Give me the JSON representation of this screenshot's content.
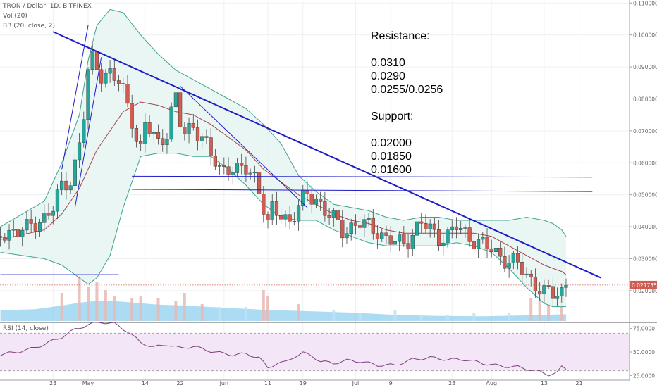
{
  "header": {
    "symbol_line": "TRON / Dollar, 1D, BITFINEX",
    "volume_line": "Vol (20)",
    "bb_line": "BB (20, close, 2)",
    "rsi_line": "RSI (14, close)"
  },
  "annotation": {
    "resistance_title": "Resistance:",
    "resistance_levels": [
      "0.0310",
      "0.0290",
      "0.0255/0.0256"
    ],
    "support_title": "Support:",
    "support_levels": [
      "0.02000",
      "0.01850",
      "0.01600"
    ]
  },
  "price_axis": {
    "ticks": [
      "0.110000",
      "0.100000",
      "0.090000",
      "0.080000",
      "0.070000",
      "0.060000",
      "0.050000",
      "0.040000",
      "0.030000",
      "0.020000"
    ],
    "tick_values": [
      0.11,
      0.1,
      0.09,
      0.08,
      0.07,
      0.06,
      0.05,
      0.04,
      0.03,
      0.02
    ],
    "last_price_label": "0.021755",
    "last_price": 0.021755
  },
  "rsi_axis": {
    "ticks": [
      "75.0000",
      "50.0000",
      "25.0000"
    ],
    "tick_values": [
      75,
      50,
      25
    ],
    "overbought": 70,
    "oversold": 30
  },
  "x_axis": {
    "labels": [
      "23",
      "May",
      "14",
      "22",
      "Jun",
      "11",
      "19",
      "Jul",
      "9",
      "23",
      "Aug",
      "13",
      "21"
    ],
    "label_days": [
      -8,
      0,
      13,
      21,
      31,
      41,
      49,
      61,
      69,
      83,
      92,
      104,
      112
    ]
  },
  "colors": {
    "up": "#26a69a",
    "down": "#d05c52",
    "bb_band": "#3fa38f",
    "bb_fill": "#e6f4f1",
    "bb_basis": "#a3424e",
    "trendline": "#1c1cc8",
    "volume": "#8fd0f0",
    "rsi_line": "#7f3f7f",
    "rsi_band": "#f2e6f7",
    "last_price_line": "#d05c52"
  },
  "chart_data": {
    "type": "candlestick",
    "title": "TRON / Dollar, 1D, BITFINEX",
    "x_unit": "days relative to May 1",
    "y_range": [
      0.0105,
      0.1105
    ],
    "rsi_range": [
      20,
      80
    ],
    "close_points": [
      [
        -20,
        0.037
      ],
      [
        -17,
        0.039
      ],
      [
        -14,
        0.039
      ],
      [
        -11,
        0.042
      ],
      [
        -8,
        0.046
      ],
      [
        -6,
        0.052
      ],
      [
        -4,
        0.055
      ],
      [
        -3,
        0.06
      ],
      [
        -2,
        0.066
      ],
      [
        -1,
        0.075
      ],
      [
        0,
        0.088
      ],
      [
        1,
        0.092
      ],
      [
        3,
        0.088
      ],
      [
        5,
        0.088
      ],
      [
        7,
        0.085
      ],
      [
        8,
        0.082
      ],
      [
        9,
        0.078
      ],
      [
        10,
        0.074
      ],
      [
        11,
        0.068
      ],
      [
        12,
        0.064
      ],
      [
        13,
        0.072
      ],
      [
        14,
        0.07
      ],
      [
        16,
        0.066
      ],
      [
        18,
        0.07
      ],
      [
        19,
        0.076
      ],
      [
        20,
        0.08
      ],
      [
        21,
        0.072
      ],
      [
        22,
        0.069
      ],
      [
        24,
        0.072
      ],
      [
        26,
        0.068
      ],
      [
        28,
        0.062
      ],
      [
        30,
        0.058
      ],
      [
        32,
        0.059
      ],
      [
        34,
        0.057
      ],
      [
        36,
        0.058
      ],
      [
        38,
        0.056
      ],
      [
        39,
        0.052
      ],
      [
        40,
        0.046
      ],
      [
        41,
        0.04
      ],
      [
        42,
        0.045
      ],
      [
        44,
        0.044
      ],
      [
        46,
        0.042
      ],
      [
        48,
        0.046
      ],
      [
        50,
        0.05
      ],
      [
        52,
        0.049
      ],
      [
        54,
        0.045
      ],
      [
        56,
        0.042
      ],
      [
        58,
        0.039
      ],
      [
        60,
        0.04
      ],
      [
        62,
        0.041
      ],
      [
        64,
        0.04
      ],
      [
        66,
        0.039
      ],
      [
        68,
        0.036
      ],
      [
        70,
        0.035
      ],
      [
        72,
        0.035
      ],
      [
        74,
        0.038
      ],
      [
        76,
        0.041
      ],
      [
        78,
        0.039
      ],
      [
        80,
        0.037
      ],
      [
        82,
        0.037
      ],
      [
        84,
        0.04
      ],
      [
        86,
        0.038
      ],
      [
        88,
        0.036
      ],
      [
        90,
        0.034
      ],
      [
        92,
        0.033
      ],
      [
        94,
        0.031
      ],
      [
        96,
        0.029
      ],
      [
        98,
        0.028
      ],
      [
        100,
        0.025
      ],
      [
        102,
        0.022
      ],
      [
        104,
        0.019
      ],
      [
        106,
        0.019
      ],
      [
        108,
        0.02
      ],
      [
        109,
        0.0217
      ]
    ],
    "bb_upper": [
      [
        -20,
        0.04
      ],
      [
        -10,
        0.048
      ],
      [
        -6,
        0.06
      ],
      [
        -2,
        0.075
      ],
      [
        0,
        0.092
      ],
      [
        2,
        0.103
      ],
      [
        5,
        0.108
      ],
      [
        8,
        0.107
      ],
      [
        12,
        0.1
      ],
      [
        16,
        0.094
      ],
      [
        20,
        0.089
      ],
      [
        24,
        0.086
      ],
      [
        28,
        0.083
      ],
      [
        32,
        0.08
      ],
      [
        36,
        0.077
      ],
      [
        40,
        0.072
      ],
      [
        44,
        0.066
      ],
      [
        48,
        0.056
      ],
      [
        52,
        0.051
      ],
      [
        56,
        0.047
      ],
      [
        60,
        0.046
      ],
      [
        64,
        0.045
      ],
      [
        68,
        0.043
      ],
      [
        72,
        0.042
      ],
      [
        76,
        0.043
      ],
      [
        80,
        0.043
      ],
      [
        84,
        0.042
      ],
      [
        88,
        0.042
      ],
      [
        92,
        0.042
      ],
      [
        96,
        0.042
      ],
      [
        100,
        0.043
      ],
      [
        104,
        0.042
      ],
      [
        106,
        0.041
      ],
      [
        108,
        0.039
      ],
      [
        109,
        0.037
      ]
    ],
    "bb_basis": [
      [
        -20,
        0.036
      ],
      [
        -10,
        0.039
      ],
      [
        -6,
        0.044
      ],
      [
        -2,
        0.052
      ],
      [
        0,
        0.058
      ],
      [
        2,
        0.064
      ],
      [
        5,
        0.07
      ],
      [
        8,
        0.076
      ],
      [
        12,
        0.079
      ],
      [
        16,
        0.078
      ],
      [
        20,
        0.076
      ],
      [
        24,
        0.075
      ],
      [
        28,
        0.072
      ],
      [
        32,
        0.068
      ],
      [
        36,
        0.064
      ],
      [
        40,
        0.058
      ],
      [
        44,
        0.054
      ],
      [
        48,
        0.05
      ],
      [
        52,
        0.047
      ],
      [
        56,
        0.044
      ],
      [
        60,
        0.042
      ],
      [
        64,
        0.041
      ],
      [
        68,
        0.039
      ],
      [
        72,
        0.038
      ],
      [
        76,
        0.038
      ],
      [
        80,
        0.038
      ],
      [
        84,
        0.038
      ],
      [
        88,
        0.038
      ],
      [
        92,
        0.037
      ],
      [
        96,
        0.034
      ],
      [
        100,
        0.031
      ],
      [
        104,
        0.028
      ],
      [
        106,
        0.027
      ],
      [
        108,
        0.026
      ],
      [
        109,
        0.025
      ]
    ],
    "bb_lower": [
      [
        -20,
        0.032
      ],
      [
        -10,
        0.03
      ],
      [
        -6,
        0.028
      ],
      [
        -2,
        0.024
      ],
      [
        0,
        0.022
      ],
      [
        2,
        0.024
      ],
      [
        5,
        0.031
      ],
      [
        8,
        0.046
      ],
      [
        12,
        0.062
      ],
      [
        16,
        0.063
      ],
      [
        20,
        0.063
      ],
      [
        24,
        0.062
      ],
      [
        28,
        0.062
      ],
      [
        32,
        0.058
      ],
      [
        36,
        0.053
      ],
      [
        40,
        0.047
      ],
      [
        44,
        0.043
      ],
      [
        48,
        0.042
      ],
      [
        52,
        0.042
      ],
      [
        56,
        0.039
      ],
      [
        60,
        0.037
      ],
      [
        64,
        0.035
      ],
      [
        68,
        0.034
      ],
      [
        72,
        0.034
      ],
      [
        76,
        0.034
      ],
      [
        80,
        0.034
      ],
      [
        84,
        0.035
      ],
      [
        88,
        0.034
      ],
      [
        92,
        0.032
      ],
      [
        96,
        0.027
      ],
      [
        100,
        0.021
      ],
      [
        104,
        0.016
      ],
      [
        106,
        0.015
      ],
      [
        108,
        0.015
      ],
      [
        109,
        0.015
      ]
    ],
    "trendlines": [
      {
        "name": "main-descending-trendline",
        "from": [
          -8,
          0.101
        ],
        "to": [
          117,
          0.024
        ],
        "width": 2
      },
      {
        "name": "secondary-descending-trendline",
        "from": [
          21,
          0.084
        ],
        "to": [
          50,
          0.046
        ],
        "width": 1
      },
      {
        "name": "rally-channel-lower",
        "from": [
          -3,
          0.046
        ],
        "to": [
          3,
          0.093
        ],
        "width": 1
      },
      {
        "name": "rally-channel-upper",
        "from": [
          -6,
          0.058
        ],
        "to": [
          0,
          0.103
        ],
        "width": 1
      },
      {
        "name": "resistance-line-upper",
        "from": [
          10,
          0.0558
        ],
        "to": [
          115,
          0.0555
        ],
        "width": 1
      },
      {
        "name": "resistance-line-lower",
        "from": [
          10,
          0.0517
        ],
        "to": [
          115,
          0.051
        ],
        "width": 1
      },
      {
        "name": "support-line-low",
        "from": [
          -20,
          0.025
        ],
        "to": [
          7,
          0.025
        ],
        "width": 1
      }
    ],
    "rsi": [
      [
        -20,
        47
      ],
      [
        -14,
        52
      ],
      [
        -10,
        58
      ],
      [
        -6,
        66
      ],
      [
        -3,
        74
      ],
      [
        0,
        79
      ],
      [
        3,
        82
      ],
      [
        6,
        80
      ],
      [
        9,
        72
      ],
      [
        12,
        60
      ],
      [
        15,
        55
      ],
      [
        18,
        58
      ],
      [
        21,
        54
      ],
      [
        24,
        56
      ],
      [
        27,
        52
      ],
      [
        30,
        49
      ],
      [
        33,
        47
      ],
      [
        36,
        48
      ],
      [
        39,
        44
      ],
      [
        41,
        33
      ],
      [
        43,
        38
      ],
      [
        45,
        39
      ],
      [
        47,
        45
      ],
      [
        49,
        49
      ],
      [
        51,
        46
      ],
      [
        53,
        40
      ],
      [
        56,
        38
      ],
      [
        59,
        41
      ],
      [
        62,
        40
      ],
      [
        66,
        36
      ],
      [
        70,
        36
      ],
      [
        74,
        42
      ],
      [
        78,
        44
      ],
      [
        82,
        42
      ],
      [
        86,
        42
      ],
      [
        90,
        38
      ],
      [
        94,
        35
      ],
      [
        98,
        34
      ],
      [
        102,
        30
      ],
      [
        105,
        26
      ],
      [
        107,
        28
      ],
      [
        108,
        34
      ],
      [
        109,
        32
      ]
    ],
    "volume_area": [
      [
        -20,
        0.38
      ],
      [
        -12,
        0.42
      ],
      [
        -6,
        0.55
      ],
      [
        -2,
        0.65
      ],
      [
        1,
        0.7
      ],
      [
        5,
        0.72
      ],
      [
        10,
        0.66
      ],
      [
        16,
        0.58
      ],
      [
        22,
        0.55
      ],
      [
        30,
        0.48
      ],
      [
        40,
        0.4
      ],
      [
        50,
        0.35
      ],
      [
        60,
        0.3
      ],
      [
        70,
        0.22
      ],
      [
        80,
        0.18
      ],
      [
        90,
        0.17
      ],
      [
        100,
        0.2
      ],
      [
        109,
        0.24
      ]
    ],
    "volume_spikes": [
      [
        -6,
        1.0
      ],
      [
        -2,
        1.6
      ],
      [
        0,
        1.2
      ],
      [
        2,
        1.4
      ],
      [
        4,
        1.1
      ],
      [
        6,
        0.9
      ],
      [
        10,
        0.8
      ],
      [
        12,
        0.9
      ],
      [
        16,
        0.8
      ],
      [
        20,
        0.7
      ],
      [
        22,
        1.0
      ],
      [
        26,
        0.6
      ],
      [
        30,
        0.5
      ],
      [
        36,
        0.5
      ],
      [
        40,
        1.1
      ],
      [
        41,
        0.9
      ],
      [
        48,
        0.6
      ],
      [
        56,
        0.4
      ],
      [
        62,
        0.3
      ],
      [
        70,
        0.4
      ],
      [
        76,
        0.2
      ],
      [
        82,
        0.2
      ],
      [
        88,
        0.3
      ],
      [
        96,
        0.3
      ],
      [
        101,
        0.8
      ],
      [
        103,
        0.7
      ],
      [
        105,
        0.6
      ],
      [
        108,
        0.9
      ]
    ]
  }
}
